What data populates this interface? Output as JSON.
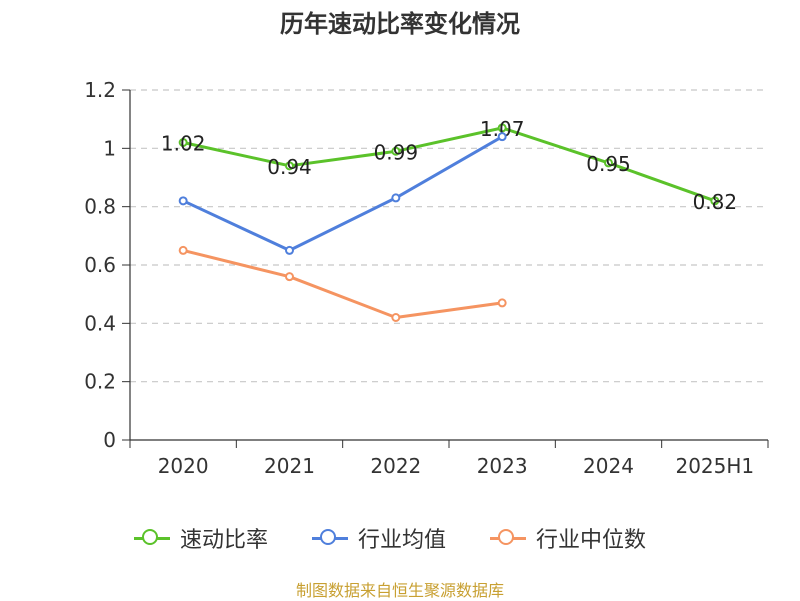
{
  "chart_data": {
    "type": "line",
    "title": "历年速动比率变化情况",
    "categories": [
      "2020",
      "2021",
      "2022",
      "2023",
      "2024",
      "2025H1"
    ],
    "ylim": [
      0,
      1.2
    ],
    "yticks": [
      "0",
      "0.2",
      "0.4",
      "0.6",
      "0.8",
      "1",
      "1.2"
    ],
    "grid": true,
    "legend_position": "bottom",
    "series": [
      {
        "name": "速动比率",
        "color": "#5bc22a",
        "values": [
          1.02,
          0.94,
          0.99,
          1.07,
          0.95,
          0.82
        ],
        "labels": [
          "1.02",
          "0.94",
          "0.99",
          "1.07",
          "0.95",
          "0.82"
        ],
        "show_labels": true
      },
      {
        "name": "行业均值",
        "color": "#4f7fdc",
        "values": [
          0.82,
          0.65,
          0.83,
          1.04,
          null,
          null
        ],
        "show_labels": false
      },
      {
        "name": "行业中位数",
        "color": "#f59461",
        "values": [
          0.65,
          0.56,
          0.42,
          0.47,
          null,
          null
        ],
        "show_labels": false
      }
    ]
  },
  "source_text": "制图数据来自恒生聚源数据库"
}
